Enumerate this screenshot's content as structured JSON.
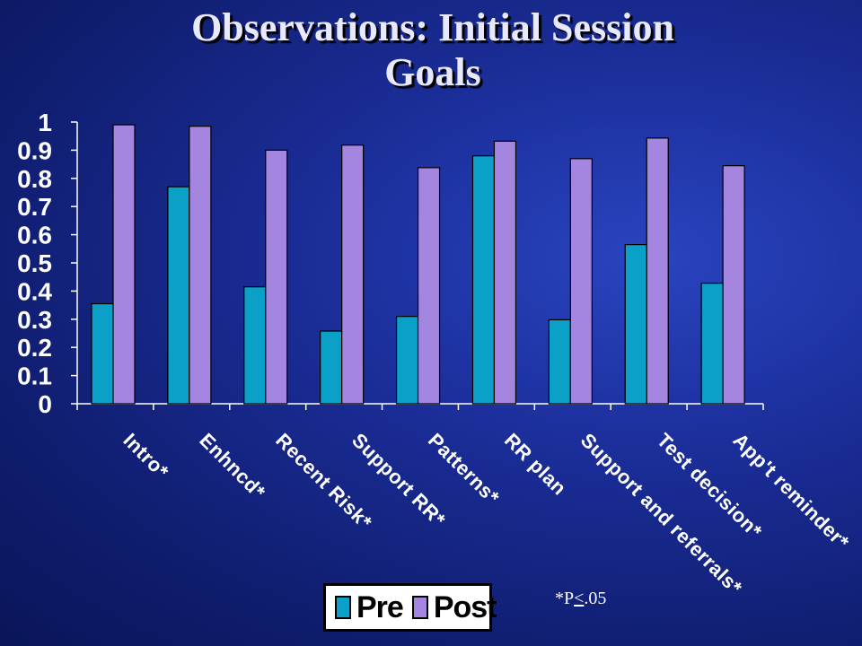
{
  "title_line1": "Observations: Initial Session",
  "title_line2": "Goals",
  "footnote": {
    "prefix": "*P",
    "le": "<",
    "value": ".05"
  },
  "chart_data": {
    "type": "bar",
    "categories": [
      "Intro*",
      "Enhncd*",
      "Recent Risk*",
      "Support RR*",
      "Patterns*",
      "RR plan",
      "Support and referrals*",
      "Test decision*",
      "App't reminder*"
    ],
    "series": [
      {
        "name": "Pre",
        "color": "#0aa0c8",
        "values": [
          0.355,
          0.77,
          0.415,
          0.258,
          0.31,
          0.88,
          0.298,
          0.565,
          0.428
        ]
      },
      {
        "name": "Post",
        "color": "#a486e0",
        "values": [
          0.99,
          0.985,
          0.9,
          0.918,
          0.838,
          0.932,
          0.87,
          0.943,
          0.845
        ]
      }
    ],
    "ylim": [
      0,
      1
    ],
    "yticks": [
      "0",
      "0.1",
      "0.2",
      "0.3",
      "0.4",
      "0.5",
      "0.6",
      "0.7",
      "0.8",
      "0.9",
      "1"
    ],
    "legend": "bottom",
    "grid": false
  }
}
